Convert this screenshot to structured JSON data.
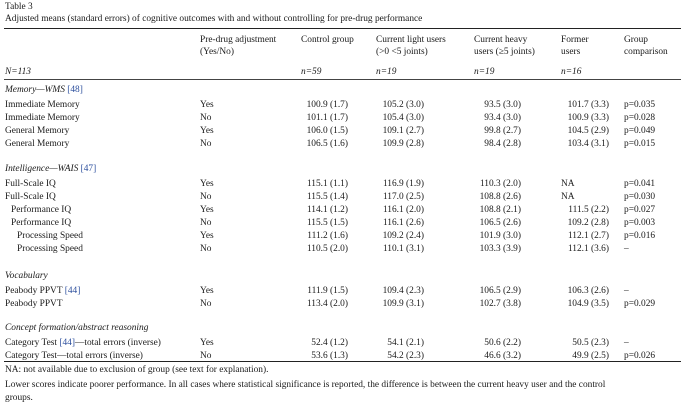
{
  "table": {
    "label": "Table 3",
    "caption": "Adjusted means (standard errors) of cognitive outcomes with and without controlling for pre-drug performance",
    "n_label": "N=113",
    "headers": {
      "adj": [
        "Pre-drug adjustment",
        "(Yes/No)"
      ],
      "control": [
        "Control group"
      ],
      "light": [
        "Current light users",
        "(>0 <5 joints)"
      ],
      "heavy": [
        "Current heavy",
        "users (≥5 joints)"
      ],
      "former": [
        "Former",
        "users"
      ],
      "cmp": [
        "Group",
        "comparison"
      ]
    },
    "n_values": {
      "control": "n=59",
      "light": "n=19",
      "heavy": "n=19",
      "former": "n=16"
    },
    "sections": [
      {
        "title": "Memory—WMS",
        "ref": "[48]",
        "rows": [
          {
            "label": "Immediate Memory",
            "adj": "Yes",
            "control": "100.9 (1.7)",
            "light": "105.2 (3.0)",
            "heavy": "93.5 (3.0)",
            "former": "101.7 (3.3)",
            "p": "p=0.035"
          },
          {
            "label": "Immediate Memory",
            "adj": "No",
            "control": "101.1 (1.7)",
            "light": "105.4 (3.0)",
            "heavy": "93.4 (3.0)",
            "former": "100.9 (3.3)",
            "p": "p=0.028"
          },
          {
            "label": "General Memory",
            "adj": "Yes",
            "control": "106.0 (1.5)",
            "light": "109.1 (2.7)",
            "heavy": "99.8 (2.7)",
            "former": "104.5 (2.9)",
            "p": "p=0.049"
          },
          {
            "label": "General Memory",
            "adj": "No",
            "control": "106.5 (1.6)",
            "light": "109.9 (2.8)",
            "heavy": "98.4 (2.8)",
            "former": "103.4 (3.1)",
            "p": "p=0.015"
          }
        ]
      },
      {
        "title": "Intelligence—WAIS",
        "ref": "[47]",
        "rows": [
          {
            "label": "Full-Scale IQ",
            "adj": "Yes",
            "control": "115.1 (1.1)",
            "light": "116.9 (1.9)",
            "heavy": "110.3 (2.0)",
            "former": "NA",
            "p": "p=0.041"
          },
          {
            "label": "Full-Scale IQ",
            "adj": "No",
            "control": "115.5 (1.4)",
            "light": "117.0 (2.5)",
            "heavy": "108.8 (2.6)",
            "former": "NA",
            "p": "p=0.030"
          },
          {
            "label": "Performance IQ",
            "adj": "Yes",
            "control": "114.1 (1.2)",
            "light": "116.1 (2.0)",
            "heavy": "108.8 (2.1)",
            "former": "111.5 (2.2)",
            "p": "p=0.027"
          },
          {
            "label": "Performance IQ",
            "adj": "No",
            "control": "115.5 (1.5)",
            "light": "116.1 (2.6)",
            "heavy": "106.5 (2.6)",
            "former": "109.2 (2.8)",
            "p": "p=0.003"
          },
          {
            "label": "Processing Speed",
            "adj": "Yes",
            "control": "111.2 (1.6)",
            "light": "109.2 (2.4)",
            "heavy": "101.9 (3.0)",
            "former": "112.1 (2.7)",
            "p": "p=0.016"
          },
          {
            "label": "Processing Speed",
            "adj": "No",
            "control": "110.5 (2.0)",
            "light": "110.1 (3.1)",
            "heavy": "103.3 (3.9)",
            "former": "112.1 (3.6)",
            "p": "–"
          }
        ]
      },
      {
        "title": "Vocabulary",
        "ref": "",
        "rows": [
          {
            "label": "Peabody PPVT",
            "ref": "[44]",
            "adj": "Yes",
            "control": "111.9 (1.5)",
            "light": "109.4 (2.3)",
            "heavy": "106.5 (2.9)",
            "former": "106.3 (2.6)",
            "p": "–"
          },
          {
            "label": "Peabody PPVT",
            "adj": "No",
            "control": "113.4 (2.0)",
            "light": "109.9 (3.1)",
            "heavy": "102.7 (3.8)",
            "former": "104.9 (3.5)",
            "p": "p=0.029"
          }
        ]
      },
      {
        "title": "Concept formation/abstract reasoning",
        "ref": "",
        "rows": [
          {
            "label": "Category Test",
            "ref": "[44]",
            "label_suffix": "—total errors (inverse)",
            "adj": "Yes",
            "control": "52.4 (1.2)",
            "light": "54.1 (2.1)",
            "heavy": "50.6 (2.2)",
            "former": "50.5 (2.3)",
            "p": "–"
          },
          {
            "label": "Category Test—total errors (inverse)",
            "adj": "No",
            "control": "53.6 (1.3)",
            "light": "54.2 (2.3)",
            "heavy": "46.6 (3.2)",
            "former": "49.9 (2.5)",
            "p": "p=0.026"
          }
        ]
      }
    ],
    "footnotes": [
      "NA: not available due to exclusion of group (see text for explanation).",
      "Lower scores indicate poorer performance. In all cases where statistical significance is reported, the difference is between the current heavy user and the control",
      "groups."
    ]
  }
}
